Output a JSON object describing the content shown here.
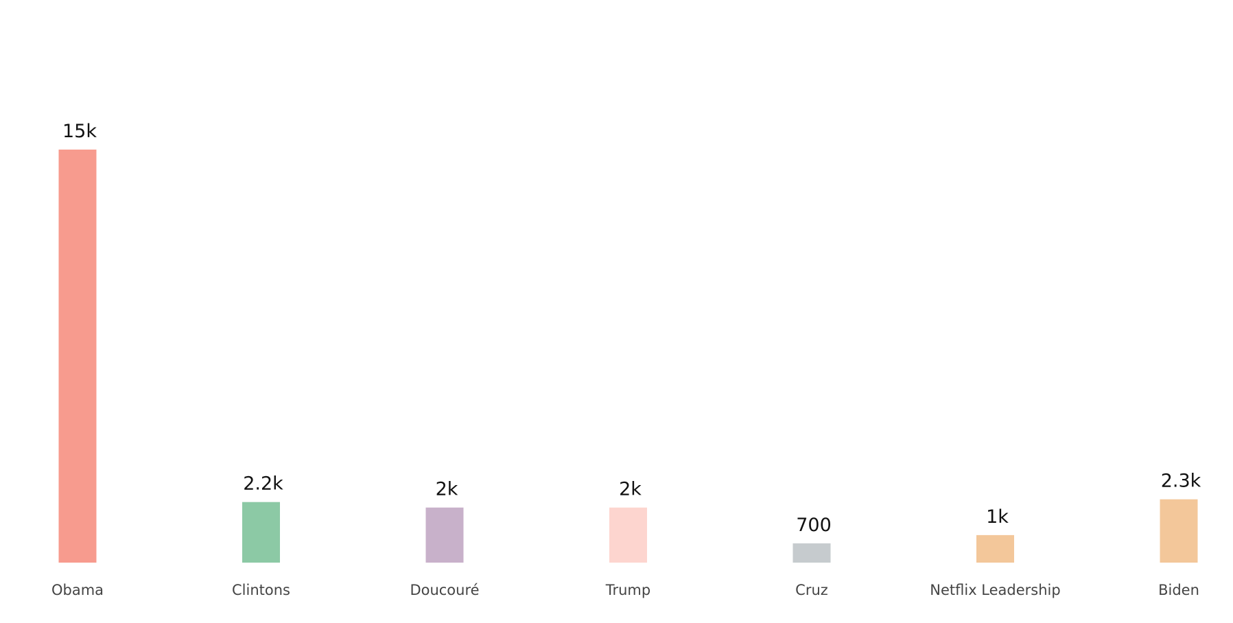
{
  "chart_data": {
    "type": "bar",
    "categories": [
      "Obama",
      "Clintons",
      "Doucouré",
      "Trump",
      "Cruz",
      "Netflix Leadership",
      "Biden"
    ],
    "values": [
      15000,
      2200,
      2000,
      2000,
      700,
      1000,
      2300
    ],
    "value_labels": [
      "15k",
      "2.2k",
      "2k",
      "2k",
      "700",
      "1k",
      "2.3k"
    ],
    "colors": [
      "#f79b8e",
      "#8cc9a5",
      "#c8b1ca",
      "#fdd5cf",
      "#c6cbce",
      "#f3c79a",
      "#f3c79a"
    ]
  }
}
